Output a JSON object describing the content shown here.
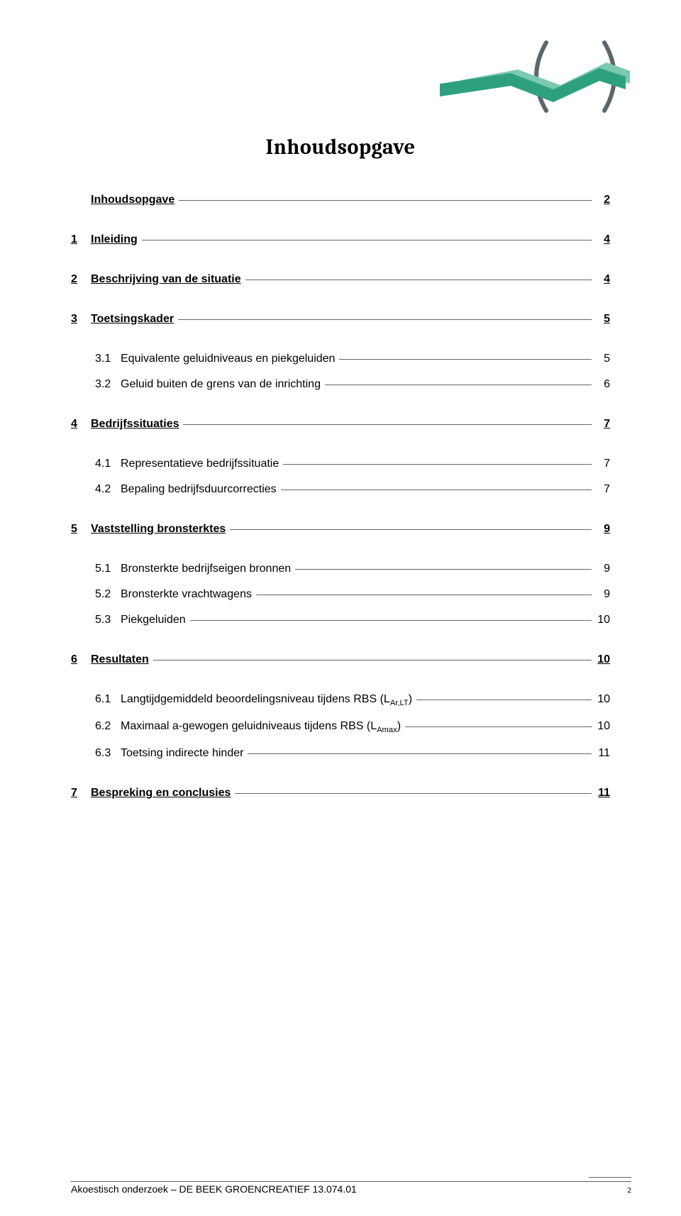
{
  "logo": {
    "paren_color": "#5b676b",
    "dark_band_color": "#2fa07f",
    "light_band_color": "#7ac9b0",
    "paren_stroke_width": 6
  },
  "doc_title": "Inhoudsopgave",
  "toc": [
    {
      "level": 0,
      "num": "",
      "label": "Inhoudsopgave",
      "page": "2"
    },
    {
      "level": 0,
      "num": "1",
      "label": "Inleiding",
      "page": "4"
    },
    {
      "level": 0,
      "num": "2",
      "label": "Beschrijving van de situatie",
      "page": "4"
    },
    {
      "level": 0,
      "num": "3",
      "label": "Toetsingskader",
      "page": "5"
    },
    {
      "level": 1,
      "num": "3.1",
      "label": "Equivalente geluidniveaus en piekgeluiden",
      "page": "5"
    },
    {
      "level": 1,
      "num": "3.2",
      "label": "Geluid buiten de grens van de inrichting",
      "page": "6"
    },
    {
      "level": 0,
      "num": "4",
      "label": "Bedrijfssituaties",
      "page": "7"
    },
    {
      "level": 1,
      "num": "4.1",
      "label": "Representatieve bedrijfssituatie",
      "page": "7"
    },
    {
      "level": 1,
      "num": "4.2",
      "label": "Bepaling bedrijfsduurcorrecties",
      "page": "7"
    },
    {
      "level": 0,
      "num": "5",
      "label": "Vaststelling bronsterktes",
      "page": "9"
    },
    {
      "level": 1,
      "num": "5.1",
      "label": "Bronsterkte bedrijfseigen bronnen",
      "page": "9"
    },
    {
      "level": 1,
      "num": "5.2",
      "label": "Bronsterkte vrachtwagens",
      "page": "9"
    },
    {
      "level": 1,
      "num": "5.3",
      "label": "Piekgeluiden",
      "page": "10"
    },
    {
      "level": 0,
      "num": "6",
      "label": "Resultaten",
      "page": "10"
    },
    {
      "level": 1,
      "num": "6.1",
      "label_html": "Langtijdgemiddeld beoordelingsniveau tijdens RBS (L<sub>Ar,LT</sub>)",
      "page": "10"
    },
    {
      "level": 1,
      "num": "6.2",
      "label_html": "Maximaal a-gewogen geluidniveaus tijdens RBS (L<sub>Amax</sub>)",
      "page": "10"
    },
    {
      "level": 1,
      "num": "6.3",
      "label": "Toetsing indirecte hinder",
      "page": "11"
    },
    {
      "level": 0,
      "num": "7",
      "label": "Bespreking en conclusies",
      "page": "11"
    }
  ],
  "footer": {
    "left": "Akoestisch onderzoek – DE BEEK GROENCREATIEF 13.074.01",
    "page_number": "2"
  }
}
